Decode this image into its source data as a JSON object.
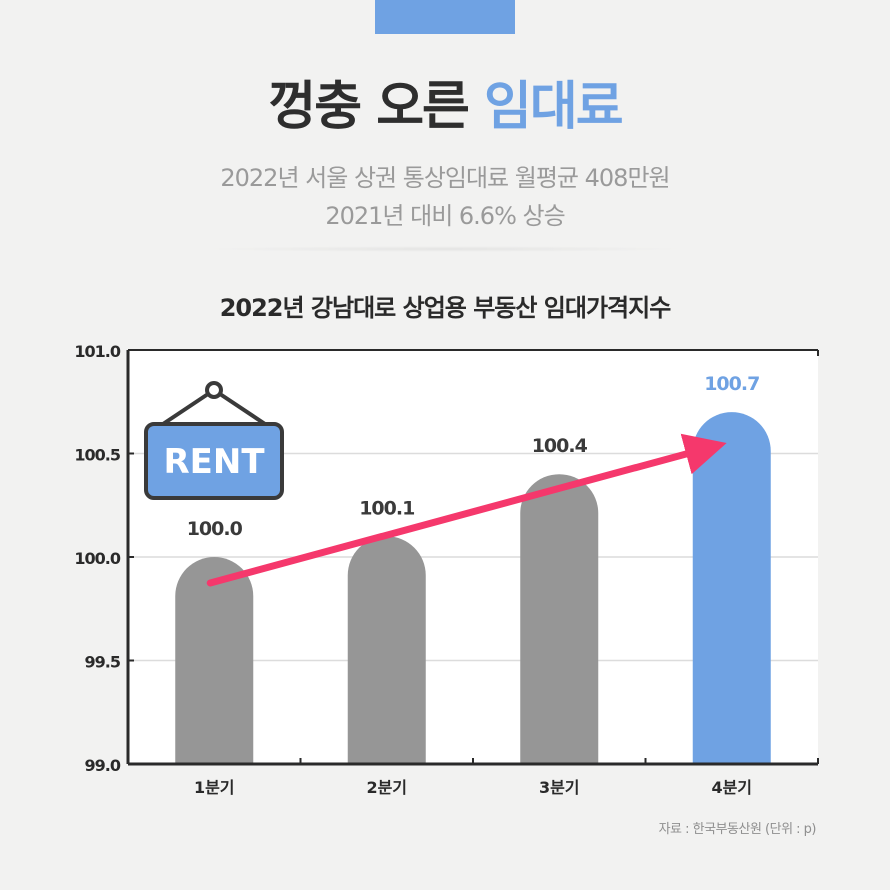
{
  "header": {
    "title_main": "껑충 오른 ",
    "title_accent": "임대료",
    "subtitle_line1": "2022년 서울 상권 통상임대료 월평균 408만원",
    "subtitle_line2": "2021년 대비 6.6% 상승"
  },
  "colors": {
    "accent": "#6fa2e3",
    "bar_gray": "#969696",
    "arrow": "#f5386c",
    "text_dark": "#3a3a3a"
  },
  "sign": {
    "label": "RENT",
    "icon": "rent-sign-icon"
  },
  "source": "자료 : 한국부동산원 (단위 : p)",
  "chart_data": {
    "type": "bar",
    "title": "2022년 강남대로 상업용 부동산 임대가격지수",
    "categories": [
      "1분기",
      "2분기",
      "3분기",
      "4분기"
    ],
    "values": [
      100.0,
      100.1,
      100.4,
      100.7
    ],
    "value_labels": [
      "100.0",
      "100.1",
      "100.4",
      "100.7"
    ],
    "highlight_index": 3,
    "ylim": [
      99.0,
      101.0
    ],
    "yticks": [
      99.0,
      99.5,
      100.0,
      100.5,
      101.0
    ],
    "ytick_labels": [
      "99.0",
      "99.5",
      "100.0",
      "100.5",
      "101.0"
    ],
    "grid": true,
    "trend_arrow": true
  }
}
